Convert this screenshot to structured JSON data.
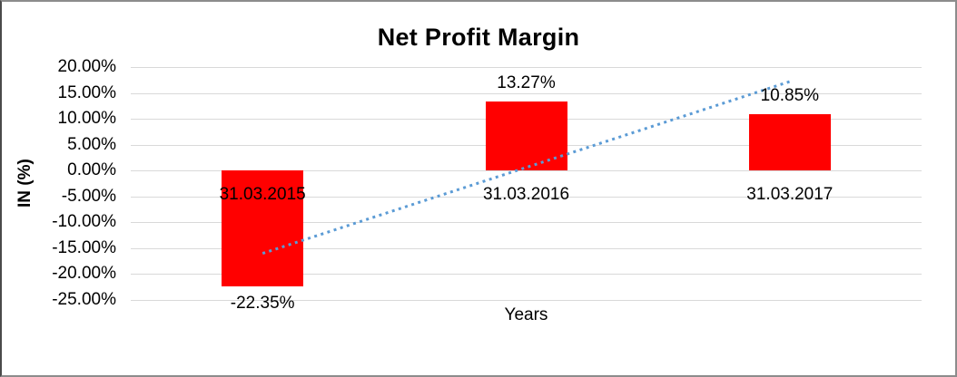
{
  "window": {
    "background": "#ffffff",
    "border_color": "#8c8c8c"
  },
  "chart_data": {
    "type": "bar",
    "title": "Net Profit Margin",
    "xlabel": "Years",
    "ylabel": "IN (%)",
    "categories": [
      "31.03.2015",
      "31.03.2016",
      "31.03.2017"
    ],
    "values": [
      -22.35,
      13.27,
      10.85
    ],
    "data_labels": [
      "-22.35%",
      "13.27%",
      "10.85%"
    ],
    "ylim": [
      -25,
      20
    ],
    "ytick_step": 5,
    "ytick_labels": [
      "20.00%",
      "15.00%",
      "10.00%",
      "5.00%",
      "0.00%",
      "-5.00%",
      "-10.00%",
      "-15.00%",
      "-20.00%",
      "-25.00%"
    ],
    "grid": true,
    "legend": "none",
    "bar_color": "#ff0000",
    "gridline_color": "#d9d9d9",
    "text_color": "#000000",
    "trendline": {
      "type": "linear",
      "style": "dotted",
      "color": "#5b9bd5",
      "start_value": -16.0,
      "end_value": 17.2
    }
  }
}
